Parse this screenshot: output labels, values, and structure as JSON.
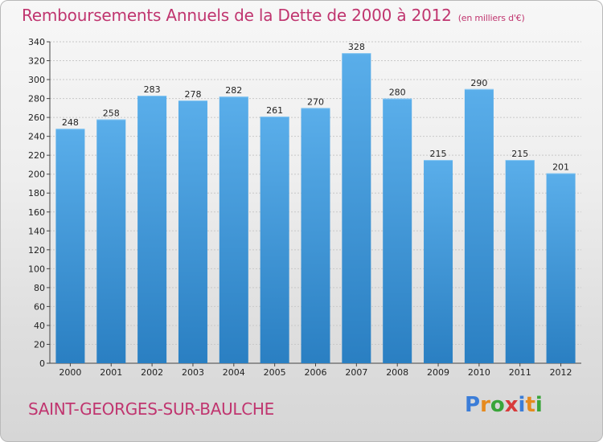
{
  "title": "Remboursements Annuels de la Dette de 2000 à 2012",
  "subtitle": "(en milliers d'€)",
  "footer": {
    "place_name": "SAINT-GEORGES-SUR-BAULCHE"
  },
  "brand": {
    "text": "Proxiti",
    "letters": [
      {
        "ch": "P",
        "color": "#3b7dd8"
      },
      {
        "ch": "r",
        "color": "#e68a1e"
      },
      {
        "ch": "o",
        "color": "#3aa53a"
      },
      {
        "ch": "x",
        "color": "#d83b3b"
      },
      {
        "ch": "i",
        "color": "#3b7dd8"
      },
      {
        "ch": "t",
        "color": "#e68a1e"
      },
      {
        "ch": "i",
        "color": "#3aa53a"
      }
    ]
  },
  "colors": {
    "bar_top": "#5aaeea",
    "bar_bottom": "#2a7fc2",
    "title": "#c0356f"
  },
  "chart_data": {
    "type": "bar",
    "categories": [
      "2000",
      "2001",
      "2002",
      "2003",
      "2004",
      "2005",
      "2006",
      "2007",
      "2008",
      "2009",
      "2010",
      "2011",
      "2012"
    ],
    "values": [
      248,
      258,
      283,
      278,
      282,
      261,
      270,
      328,
      280,
      215,
      290,
      215,
      201
    ],
    "ylim": [
      0,
      340
    ],
    "yticks": [
      0,
      20,
      40,
      60,
      80,
      100,
      120,
      140,
      160,
      180,
      200,
      220,
      240,
      260,
      280,
      300,
      320,
      340
    ],
    "grid": true,
    "xlabel": "",
    "ylabel": ""
  }
}
